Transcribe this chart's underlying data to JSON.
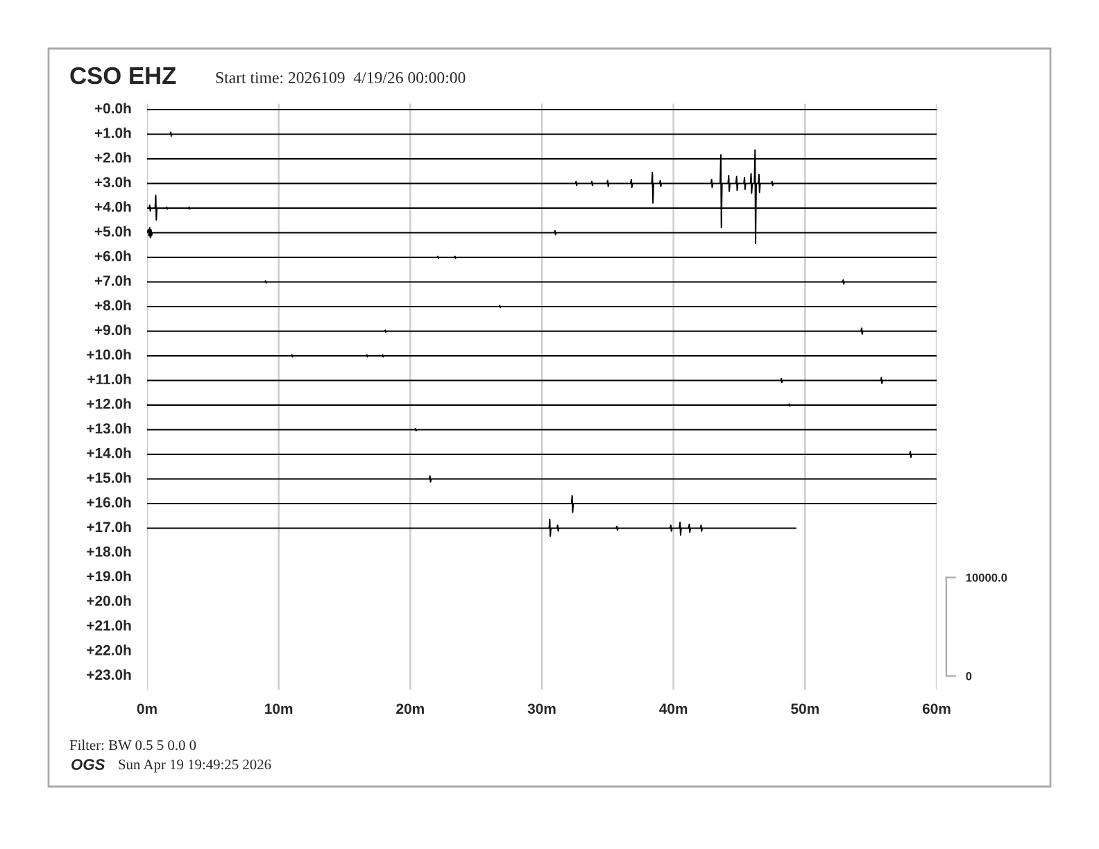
{
  "chart_data": {
    "type": "line",
    "title": "CSO EHZ",
    "subtitle": "Start time: 2026109  4/19/26 00:00:00",
    "annotations": [
      "+0.0h",
      "+1.0h",
      "+2.0h",
      "+3.0h",
      "+4.0h",
      "+5.0h",
      "+6.0h",
      "+7.0h",
      "+8.0h",
      "+9.0h",
      "+10.0h",
      "+11.0h",
      "+12.0h",
      "+13.0h",
      "+14.0h",
      "+15.0h",
      "+16.0h",
      "+17.0h",
      "+18.0h",
      "+19.0h",
      "+20.0h",
      "+21.0h",
      "+22.0h",
      "+23.0h",
      "Filter: BW 0.5 5 0.0 0",
      "OGS",
      "Sun Apr 19 19:49:25 2026"
    ],
    "xlim": [
      0,
      60
    ],
    "xticks": [
      {
        "value": 0,
        "label": "0m"
      },
      {
        "value": 10,
        "label": "10m"
      },
      {
        "value": 20,
        "label": "20m"
      },
      {
        "value": 30,
        "label": "30m"
      },
      {
        "value": 40,
        "label": "40m"
      },
      {
        "value": 50,
        "label": "50m"
      },
      {
        "value": 60,
        "label": "60m"
      }
    ],
    "ylim": [
      -1400,
      58100
    ],
    "yticks": [
      0,
      {
        "value": 10000,
        "label": "10000.0"
      }
    ],
    "grid": "x",
    "series": [
      {
        "color": "#000000",
        "x": [
          0,
          60
        ],
        "values": [
          57500,
          57500
        ]
      },
      {
        "color": "#000000",
        "x": [
          0,
          1.75,
          1.8,
          1.84,
          1.89,
          60
        ],
        "values": [
          55000,
          55000,
          55200,
          54800,
          55000,
          55000
        ]
      },
      {
        "color": "#000000",
        "x": [
          0,
          60
        ],
        "values": [
          52500,
          52500
        ]
      },
      {
        "color": "#000000",
        "x": [
          0,
          32.55,
          32.6,
          32.64,
          32.69,
          33.75,
          33.8,
          33.84,
          33.89,
          34.95,
          35.0,
          35.04,
          35.09,
          36.75,
          36.8,
          36.84,
          36.89,
          38.35,
          38.4,
          38.44,
          38.49,
          38.95,
          39.0,
          39.04,
          39.09,
          42.85,
          42.9,
          42.94,
          42.99,
          43.55,
          43.6,
          43.64,
          43.69,
          44.15,
          44.2,
          44.24,
          44.29,
          44.75,
          44.8,
          44.84,
          44.89,
          45.35,
          45.4,
          45.44,
          45.49,
          45.85,
          45.9,
          45.94,
          45.99,
          46.15,
          46.2,
          46.24,
          46.29,
          46.45,
          46.5,
          46.54,
          46.59,
          47.45,
          47.5,
          47.54,
          47.59,
          60
        ],
        "values": [
          50000,
          50000,
          50200,
          49800,
          50000,
          50000,
          50200,
          49800,
          50000,
          50000,
          50300,
          49700,
          50000,
          50000,
          50400,
          49600,
          50000,
          50000,
          51100,
          48000,
          50000,
          50000,
          50300,
          49700,
          50000,
          50000,
          50400,
          49600,
          50000,
          50000,
          52900,
          45500,
          50000,
          50000,
          50800,
          49200,
          50000,
          50000,
          50700,
          49300,
          50000,
          50000,
          50600,
          49400,
          50000,
          50000,
          51000,
          49000,
          50000,
          50000,
          53400,
          43900,
          50000,
          50000,
          50900,
          49100,
          50000,
          50000,
          50200,
          49800,
          50000,
          50000
        ]
      },
      {
        "color": "#000000",
        "x": [
          0,
          0.15,
          0.2,
          0.24,
          0.29,
          0.61,
          0.66,
          0.7,
          0.75,
          1.45,
          1.5,
          1.54,
          1.59,
          3.15,
          3.2,
          3.24,
          3.29,
          60
        ],
        "values": [
          47500,
          47500,
          47800,
          47200,
          47500,
          47500,
          48800,
          46300,
          47500,
          47500,
          47600,
          47400,
          47500,
          47500,
          47600,
          47400,
          47500,
          47500
        ]
      },
      {
        "color": "#000000",
        "x": [
          0,
          0.1,
          0.14,
          0.2,
          0.24,
          0.3,
          0.34,
          0.39,
          30.95,
          31.0,
          31.04,
          31.09,
          60
        ],
        "values": [
          45000,
          45300,
          44700,
          45500,
          44500,
          45300,
          44700,
          45000,
          45000,
          45200,
          44800,
          45000,
          45000
        ]
      },
      {
        "color": "#000000",
        "x": [
          0,
          22.05,
          22.1,
          22.14,
          22.19,
          23.35,
          23.4,
          23.44,
          23.49,
          60
        ],
        "values": [
          42500,
          42500,
          42600,
          42400,
          42500,
          42500,
          42600,
          42400,
          42500,
          42500
        ]
      },
      {
        "color": "#000000",
        "x": [
          0,
          8.95,
          9.0,
          9.04,
          9.09,
          52.85,
          52.9,
          52.94,
          52.99,
          60
        ],
        "values": [
          40000,
          40000,
          40100,
          39900,
          40000,
          40000,
          40200,
          39800,
          40000,
          40000
        ]
      },
      {
        "color": "#000000",
        "x": [
          0,
          26.75,
          26.8,
          26.84,
          26.89,
          60
        ],
        "values": [
          37500,
          37500,
          37600,
          37400,
          37500,
          37500
        ]
      },
      {
        "color": "#000000",
        "x": [
          0,
          18.05,
          18.1,
          18.14,
          18.19,
          54.25,
          54.3,
          54.34,
          54.39,
          60
        ],
        "values": [
          35000,
          35000,
          35100,
          34900,
          35000,
          35000,
          35300,
          34700,
          35000,
          35000
        ]
      },
      {
        "color": "#000000",
        "x": [
          0,
          10.95,
          11.0,
          11.04,
          11.09,
          16.65,
          16.7,
          16.74,
          16.79,
          17.85,
          17.9,
          17.94,
          17.99,
          60
        ],
        "values": [
          32500,
          32500,
          32600,
          32400,
          32500,
          32500,
          32600,
          32400,
          32500,
          32500,
          32600,
          32400,
          32500,
          32500
        ]
      },
      {
        "color": "#000000",
        "x": [
          0,
          48.15,
          48.2,
          48.24,
          48.29,
          55.75,
          55.8,
          55.84,
          55.89,
          60
        ],
        "values": [
          30000,
          30000,
          30200,
          29800,
          30000,
          30000,
          30300,
          29700,
          30000,
          30000
        ]
      },
      {
        "color": "#000000",
        "x": [
          0,
          48.75,
          48.8,
          48.84,
          48.89,
          60
        ],
        "values": [
          27500,
          27500,
          27600,
          27400,
          27500,
          27500
        ]
      },
      {
        "color": "#000000",
        "x": [
          0,
          20.35,
          20.4,
          20.44,
          20.49,
          60
        ],
        "values": [
          25000,
          25000,
          25100,
          24900,
          25000,
          25000
        ]
      },
      {
        "color": "#000000",
        "x": [
          0,
          57.95,
          58.0,
          58.04,
          58.09,
          60
        ],
        "values": [
          22500,
          22500,
          22800,
          22200,
          22500,
          22500
        ]
      },
      {
        "color": "#000000",
        "x": [
          0,
          21.45,
          21.5,
          21.54,
          21.59,
          60
        ],
        "values": [
          20000,
          20000,
          20300,
          19700,
          20000,
          20000
        ]
      },
      {
        "color": "#000000",
        "x": [
          0,
          32.25,
          32.3,
          32.34,
          32.39,
          60
        ],
        "values": [
          17500,
          17500,
          18300,
          16600,
          17500,
          17500
        ]
      },
      {
        "color": "#000000",
        "x": [
          0,
          30.55,
          30.6,
          30.64,
          30.69,
          31.15,
          31.2,
          31.24,
          31.29,
          35.65,
          35.7,
          35.74,
          35.79,
          39.75,
          39.8,
          39.84,
          39.89,
          40.45,
          40.5,
          40.54,
          40.59,
          41.15,
          41.2,
          41.24,
          41.29,
          42.05,
          42.1,
          42.14,
          42.19,
          49.3
        ],
        "values": [
          15000,
          15000,
          15900,
          14200,
          15000,
          15000,
          15300,
          14700,
          15000,
          15000,
          15200,
          14800,
          15000,
          15000,
          15300,
          14700,
          15000,
          15000,
          15600,
          14300,
          15000,
          15000,
          15400,
          14600,
          15000,
          15000,
          15300,
          14700,
          15000,
          15000
        ]
      }
    ]
  }
}
